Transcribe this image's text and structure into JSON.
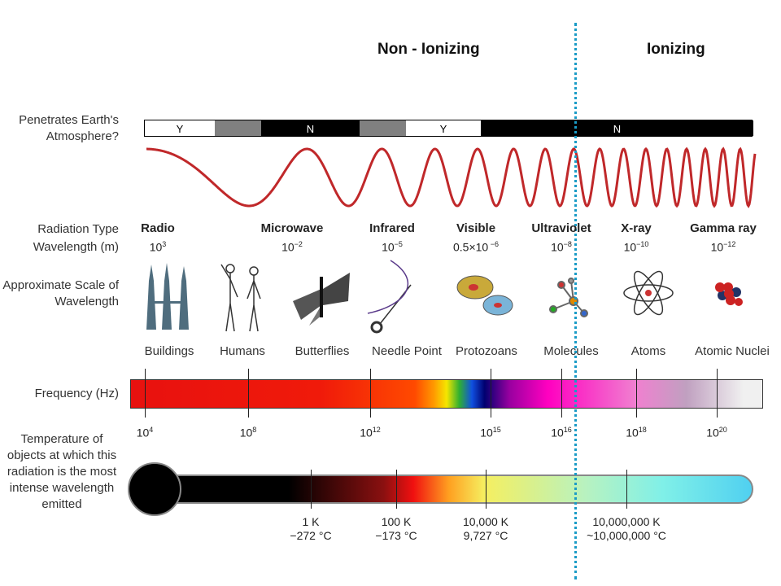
{
  "headers": {
    "non_ionizing": "Non - Ionizing",
    "ionizing": "Ionizing"
  },
  "row_labels": {
    "atmosphere": "Penetrates Earth's Atmosphere?",
    "radiation_type": "Radiation Type",
    "wavelength": "Wavelength (m)",
    "scale": "Approximate Scale of Wavelength",
    "frequency": "Frequency (Hz)",
    "temperature": "Temperature of objects at which this radiation is the most intense wavelength emitted"
  },
  "atmosphere": [
    {
      "label": "Y",
      "fill": "#ffffff"
    },
    {
      "label": "",
      "fill": "#808080"
    },
    {
      "label": "N",
      "fill": "#000000"
    },
    {
      "label": "",
      "fill": "#808080"
    },
    {
      "label": "Y",
      "fill": "#ffffff"
    },
    {
      "label": "N",
      "fill": "#000000"
    }
  ],
  "radiation_types": [
    {
      "name": "Radio",
      "base": "10",
      "exp": "3"
    },
    {
      "name": "Microwave",
      "base": "10",
      "exp": "−2"
    },
    {
      "name": "Infrared",
      "base": "10",
      "exp": "−5"
    },
    {
      "name": "Visible",
      "base": "0.5×10",
      "exp": " −6"
    },
    {
      "name": "Ultraviolet",
      "base": "10",
      "exp": "−8"
    },
    {
      "name": "X-ray",
      "base": "10",
      "exp": "−10"
    },
    {
      "name": "Gamma ray",
      "base": "10",
      "exp": "−12"
    }
  ],
  "scales": [
    "Buildings",
    "Humans",
    "Butterflies",
    "Needle Point",
    "Protozoans",
    "Molecules",
    "Atoms",
    "Atomic Nuclei"
  ],
  "frequencies": [
    {
      "base": "10",
      "exp": "4"
    },
    {
      "base": "10",
      "exp": "8"
    },
    {
      "base": "10",
      "exp": "12"
    },
    {
      "base": "10",
      "exp": "15"
    },
    {
      "base": "10",
      "exp": "16"
    },
    {
      "base": "10",
      "exp": "18"
    },
    {
      "base": "10",
      "exp": "20"
    }
  ],
  "temperatures": [
    {
      "k": "1 K",
      "c": "−272 °C"
    },
    {
      "k": "100 K",
      "c": "−173 °C"
    },
    {
      "k": "10,000 K",
      "c": "9,727 °C"
    },
    {
      "k": "10,000,000 K",
      "c": "~10,000,000 °C"
    }
  ],
  "colors": {
    "wave": "#c0282a",
    "divider": "#1a9bc6"
  }
}
